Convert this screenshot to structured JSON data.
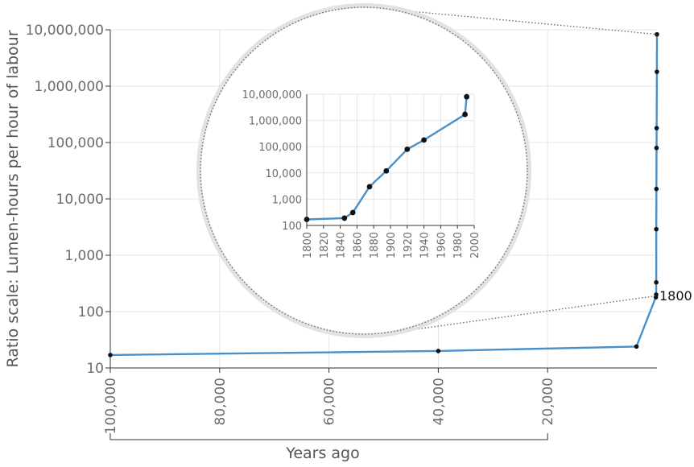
{
  "chart_data": [
    {
      "type": "line",
      "role": "main",
      "ylabel": "Ratio scale: Lumen-hours per hour of labour",
      "xlabel": "Years ago",
      "yscale": "log",
      "ylim": [
        10,
        10000000
      ],
      "xlim": [
        100000,
        0
      ],
      "x_ticks": [
        "100,000",
        "80,000",
        "60,000",
        "40,000",
        "20,000"
      ],
      "x_tick_values": [
        100000,
        80000,
        60000,
        40000,
        20000
      ],
      "y_ticks": [
        "10,000,000",
        "1,000,000",
        "100,000",
        "10,000",
        "1,000",
        "100",
        "10"
      ],
      "y_tick_values": [
        10000000,
        1000000,
        100000,
        10000,
        1000,
        100,
        10
      ],
      "bracket_range": [
        100000,
        20000
      ],
      "annotation": {
        "label": "1800",
        "x": 200,
        "y": 190
      },
      "series": [
        {
          "x": [
            100000,
            40000,
            3750,
            200,
            150,
            135,
            125,
            100,
            80,
            60,
            10,
            5
          ],
          "y": [
            17,
            20,
            24,
            180,
            200,
            330,
            2900,
            15000,
            80000,
            180000,
            1800000,
            8300000
          ]
        }
      ]
    },
    {
      "type": "line",
      "role": "inset",
      "yscale": "log",
      "ylim": [
        100,
        10000000
      ],
      "xlim": [
        1800,
        2000
      ],
      "x_ticks": [
        "1800",
        "1820",
        "1840",
        "1860",
        "1880",
        "1900",
        "1920",
        "1940",
        "1960",
        "1980",
        "2000"
      ],
      "x_tick_values": [
        1800,
        1820,
        1840,
        1860,
        1880,
        1900,
        1920,
        1940,
        1960,
        1980,
        2000
      ],
      "y_ticks": [
        "10,000,000",
        "1,000,000",
        "100,000",
        "10,000",
        "1,000",
        "100"
      ],
      "y_tick_values": [
        10000000,
        1000000,
        100000,
        10000,
        1000,
        100
      ],
      "series": [
        {
          "x": [
            1800,
            1845,
            1855,
            1875,
            1895,
            1920,
            1940,
            1989,
            1991
          ],
          "y": [
            170,
            190,
            310,
            3000,
            12000,
            80000,
            180000,
            1700000,
            8000000
          ]
        }
      ]
    }
  ]
}
